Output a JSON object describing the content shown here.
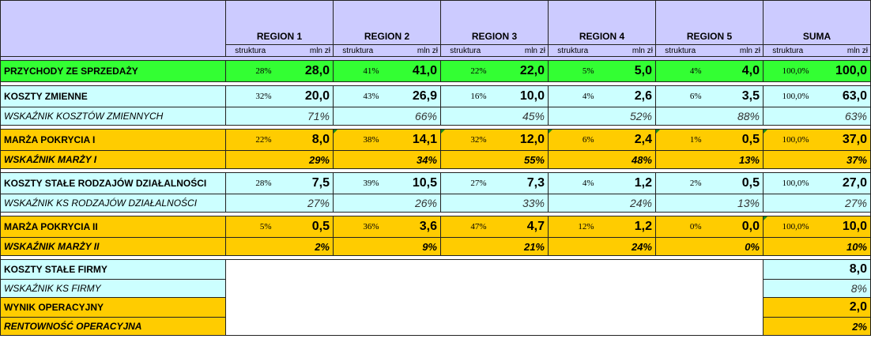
{
  "header": {
    "regions": [
      "REGION 1",
      "REGION 2",
      "REGION 3",
      "REGION 4",
      "REGION 5",
      "SUMA"
    ],
    "sub_left": "struktura",
    "sub_right": "mln zł"
  },
  "rows": {
    "przychody": {
      "label": "PRZYCHODY ZE SPRZEDAŻY",
      "cells": [
        [
          "28%",
          "28,0"
        ],
        [
          "41%",
          "41,0"
        ],
        [
          "22%",
          "22,0"
        ],
        [
          "5%",
          "5,0"
        ],
        [
          "4%",
          "4,0"
        ],
        [
          "100,0%",
          "100,0"
        ]
      ]
    },
    "koszty_zmienne": {
      "label": "KOSZTY ZMIENNE",
      "cells": [
        [
          "32%",
          "20,0"
        ],
        [
          "43%",
          "26,9"
        ],
        [
          "16%",
          "10,0"
        ],
        [
          "4%",
          "2,6"
        ],
        [
          "6%",
          "3,5"
        ],
        [
          "100,0%",
          "63,0"
        ]
      ]
    },
    "wsk_kosztow_zmiennych": {
      "label": "WSKAŹNIK KOSZTÓW ZMIENNYCH",
      "values": [
        "71%",
        "66%",
        "45%",
        "52%",
        "88%",
        "63%"
      ]
    },
    "marza_1": {
      "label": "MARŻA POKRYCIA I",
      "cells": [
        [
          "22%",
          "8,0"
        ],
        [
          "38%",
          "14,1"
        ],
        [
          "32%",
          "12,0"
        ],
        [
          "6%",
          "2,4"
        ],
        [
          "1%",
          "0,5"
        ],
        [
          "100,0%",
          "37,0"
        ]
      ]
    },
    "wsk_marzy_1": {
      "label": "WSKAŹNIK MARŻY I",
      "values": [
        "29%",
        "34%",
        "55%",
        "48%",
        "13%",
        "37%"
      ]
    },
    "koszty_stale_rodz": {
      "label": "KOSZTY STAŁE RODZAJÓW DZIAŁALNOŚCI",
      "cells": [
        [
          "28%",
          "7,5"
        ],
        [
          "39%",
          "10,5"
        ],
        [
          "27%",
          "7,3"
        ],
        [
          "4%",
          "1,2"
        ],
        [
          "2%",
          "0,5"
        ],
        [
          "100,0%",
          "27,0"
        ]
      ]
    },
    "wsk_ks_rodz": {
      "label": "WSKAŹNIK KS RODZAJÓW DZIAŁALNOŚCI",
      "values": [
        "27%",
        "26%",
        "33%",
        "24%",
        "13%",
        "27%"
      ]
    },
    "marza_2": {
      "label": "MARŻA POKRYCIA II",
      "cells": [
        [
          "5%",
          "0,5"
        ],
        [
          "36%",
          "3,6"
        ],
        [
          "47%",
          "4,7"
        ],
        [
          "12%",
          "1,2"
        ],
        [
          "0%",
          "0,0"
        ],
        [
          "100,0%",
          "10,0"
        ]
      ]
    },
    "wsk_marzy_2": {
      "label": "WSKAŹNIK MARŻY II",
      "values": [
        "2%",
        "9%",
        "21%",
        "24%",
        "0%",
        "10%"
      ]
    },
    "koszty_stale_firmy": {
      "label": "KOSZTY STAŁE FIRMY",
      "value": "8,0"
    },
    "wsk_ks_firmy": {
      "label": "WSKAŹNIK KS FIRMY",
      "value": "8%"
    },
    "wynik": {
      "label": "WYNIK OPERACYJNY",
      "value": "2,0"
    },
    "rentownosc": {
      "label": "RENTOWNOŚĆ OPERACYJNA",
      "value": "2%"
    }
  },
  "colors": {
    "header": "#cccbff",
    "sales_row": "#33ff33",
    "cost_rows": "#ccffff",
    "margin_rows": "#ffcc00",
    "comment_marker": "#1a8f1a"
  }
}
